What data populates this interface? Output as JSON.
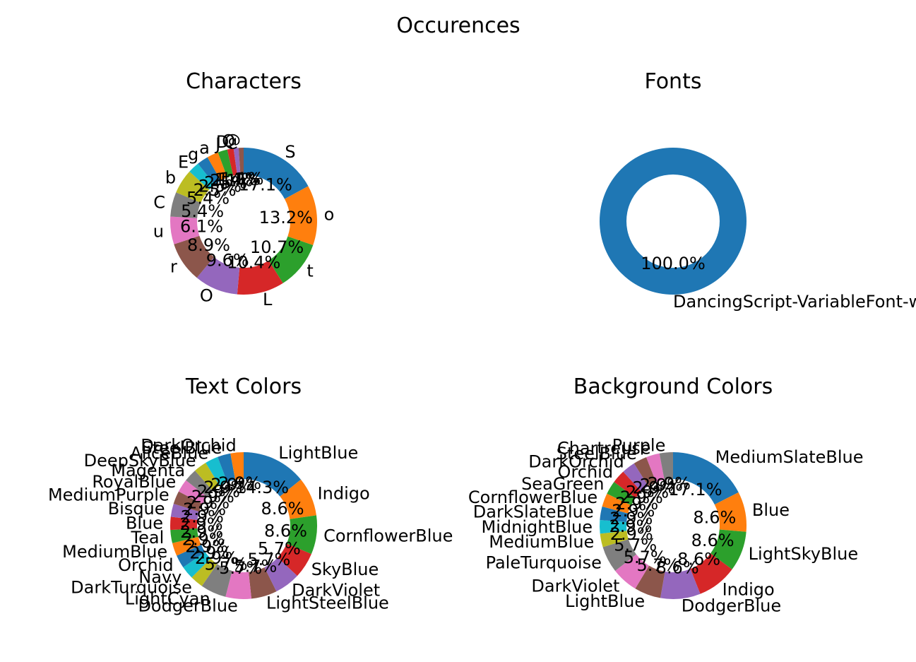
{
  "figure": {
    "title": "Occurences"
  },
  "palette": [
    "#1f77b4",
    "#ff7f0e",
    "#2ca02c",
    "#d62728",
    "#9467bd",
    "#8c564b",
    "#e377c2",
    "#7f7f7f",
    "#bcbd22",
    "#17becf"
  ],
  "chart_data": [
    {
      "id": "characters",
      "type": "pie",
      "title": "Characters",
      "labels": [
        "S",
        "o",
        "t",
        "L",
        "O",
        "r",
        "u",
        "C",
        "b",
        "E",
        "g",
        "a",
        "J",
        "D",
        "Q",
        "@"
      ],
      "values": [
        17.1,
        13.2,
        10.7,
        10.4,
        9.6,
        8.9,
        6.1,
        5.4,
        5.4,
        2.5,
        2.5,
        2.5,
        2.1,
        1.4,
        1.1,
        1.1
      ],
      "value_labels": [
        "17.1%",
        "13.2%",
        "10.7%",
        "10.4%",
        "9.6%",
        "8.9%",
        "6.1%",
        "5.4%",
        "5.4%",
        "2.5%",
        "2.5%",
        "2.5%",
        "2.1%",
        "1.4%",
        "1.1%",
        "1.1%"
      ]
    },
    {
      "id": "fonts",
      "type": "pie",
      "title": "Fonts",
      "labels": [
        "DancingScript-VariableFont-wght.ttf"
      ],
      "values": [
        100.0
      ],
      "value_labels": [
        "100.0%"
      ]
    },
    {
      "id": "text-colors",
      "type": "pie",
      "title": "Text Colors",
      "labels": [
        "LightBlue",
        "Indigo",
        "CornflowerBlue",
        "SkyBlue",
        "DarkViolet",
        "LightSteelBlue",
        "DodgerBlue",
        "LightCyan",
        "DarkTurquoise",
        "Navy",
        "Orchid",
        "MediumBlue",
        "Teal",
        "Blue",
        "Bisque",
        "MediumPurple",
        "RoyalBlue",
        "Magenta",
        "DeepSkyBlue",
        "AliceBlue",
        "SteelBlue",
        "DarkOrchid"
      ],
      "values": [
        14.3,
        8.6,
        8.6,
        5.7,
        5.7,
        5.7,
        5.7,
        5.7,
        2.9,
        2.9,
        2.9,
        2.9,
        2.9,
        2.9,
        2.9,
        2.9,
        2.9,
        2.9,
        2.9,
        2.9,
        2.9,
        2.9
      ],
      "value_labels": [
        "14.3%",
        "8.6%",
        "8.6%",
        "5.7%",
        "5.7%",
        "5.7%",
        "5.7%",
        "5.7%",
        "2.9%",
        "2.9%",
        "2.9%",
        "2.9%",
        "2.9%",
        "2.9%",
        "2.9%",
        "2.9%",
        "2.9%",
        "2.9%",
        "2.9%",
        "2.9%",
        "2.9%",
        "2.9%"
      ]
    },
    {
      "id": "background-colors",
      "type": "pie",
      "title": "Background Colors",
      "labels": [
        "MediumSlateBlue",
        "Blue",
        "LightSkyBlue",
        "Indigo",
        "DodgerBlue",
        "LightBlue",
        "DarkViolet",
        "PaleTurquoise",
        "MediumBlue",
        "MidnightBlue",
        "DarkSlateBlue",
        "CornflowerBlue",
        "SeaGreen",
        "Orchid",
        "DarkOrchid",
        "SteelBlue",
        "Chartreuse",
        "Purple"
      ],
      "values": [
        17.1,
        8.6,
        8.6,
        8.6,
        8.6,
        5.7,
        5.7,
        5.7,
        2.9,
        2.9,
        2.9,
        2.9,
        2.9,
        2.9,
        2.9,
        2.9,
        2.9,
        2.9
      ],
      "value_labels": [
        "17.1%",
        "8.6%",
        "8.6%",
        "8.6%",
        "8.6%",
        "5.7%",
        "5.7%",
        "5.7%",
        "2.9%",
        "2.9%",
        "2.9%",
        "2.9%",
        "2.9%",
        "2.9%",
        "2.9%",
        "2.9%",
        "2.9%",
        "2.9%"
      ]
    }
  ]
}
